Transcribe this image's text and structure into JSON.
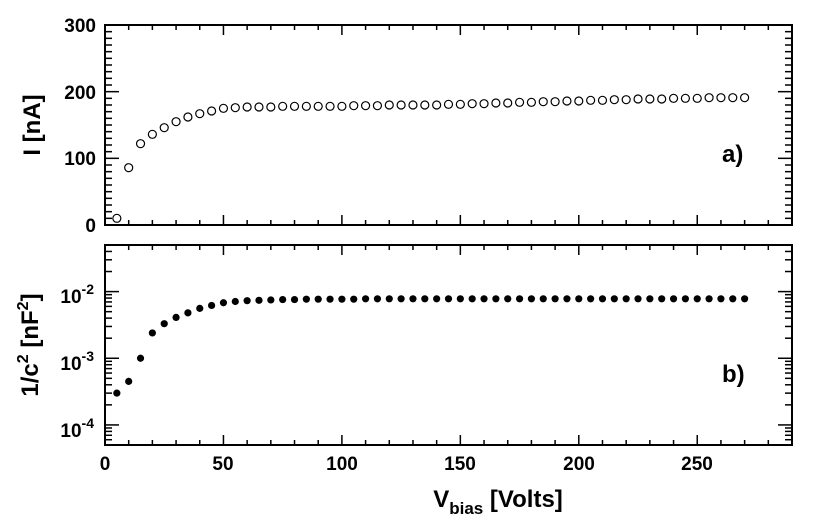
{
  "chart_data": [
    {
      "panel": "a)",
      "type": "scatter",
      "marker": "open-circle",
      "xlabel": "V",
      "xlabel_sub": "bias",
      "xlabel_rest": " [Volts]",
      "ylabel": "I [nA]",
      "xlim": [
        0,
        290
      ],
      "ylim": [
        0,
        300
      ],
      "x_ticks": [
        "0",
        "50",
        "100",
        "150",
        "200",
        "250"
      ],
      "y_ticks": [
        "0",
        "100",
        "200",
        "300"
      ],
      "x": [
        5,
        10,
        15,
        20,
        25,
        30,
        35,
        40,
        45,
        50,
        55,
        60,
        65,
        70,
        75,
        80,
        85,
        90,
        95,
        100,
        105,
        110,
        115,
        120,
        125,
        130,
        135,
        140,
        145,
        150,
        155,
        160,
        165,
        170,
        175,
        180,
        185,
        190,
        195,
        200,
        205,
        210,
        215,
        220,
        225,
        230,
        235,
        240,
        245,
        250,
        255,
        260,
        265,
        270
      ],
      "y": [
        10,
        86,
        122,
        136,
        146,
        155,
        162,
        167,
        171,
        175,
        176,
        177,
        177,
        177,
        178,
        178,
        178,
        178,
        178,
        178,
        179,
        179,
        179,
        180,
        180,
        180,
        180,
        180,
        181,
        181,
        182,
        182,
        183,
        183,
        184,
        184,
        185,
        185,
        186,
        186,
        187,
        187,
        188,
        188,
        189,
        189,
        189,
        190,
        190,
        190,
        191,
        191,
        191,
        191
      ]
    },
    {
      "panel": "b)",
      "type": "scatter",
      "marker": "filled-circle",
      "xlabel": "V",
      "xlabel_sub": "bias",
      "xlabel_rest": " [Volts]",
      "ylabel": "1/c",
      "ylabel_sup": "2",
      "ylabel_rest": " [nF",
      "ylabel_sup2": "2",
      "ylabel_end": "]",
      "yscale": "log",
      "xlim": [
        0,
        290
      ],
      "ylim": [
        5e-05,
        0.05
      ],
      "x_ticks": [
        "0",
        "50",
        "100",
        "150",
        "200",
        "250"
      ],
      "y_ticks": [
        {
          "base": "10",
          "exp": "-4",
          "value": 0.0001
        },
        {
          "base": "10",
          "exp": "-3",
          "value": 0.001
        },
        {
          "base": "10",
          "exp": "-2",
          "value": 0.01
        }
      ],
      "x": [
        5,
        10,
        15,
        20,
        25,
        30,
        35,
        40,
        45,
        50,
        55,
        60,
        65,
        70,
        75,
        80,
        85,
        90,
        95,
        100,
        105,
        110,
        115,
        120,
        125,
        130,
        135,
        140,
        145,
        150,
        155,
        160,
        165,
        170,
        175,
        180,
        185,
        190,
        195,
        200,
        205,
        210,
        215,
        220,
        225,
        230,
        235,
        240,
        245,
        250,
        255,
        260,
        265,
        270
      ],
      "y": [
        0.0003,
        0.00045,
        0.001,
        0.0024,
        0.0033,
        0.0041,
        0.0048,
        0.0056,
        0.0062,
        0.0068,
        0.0071,
        0.0073,
        0.0074,
        0.0075,
        0.0076,
        0.0076,
        0.0077,
        0.0077,
        0.0077,
        0.0077,
        0.0077,
        0.0078,
        0.0078,
        0.0078,
        0.0078,
        0.0078,
        0.0078,
        0.0078,
        0.0078,
        0.0078,
        0.0078,
        0.0078,
        0.0078,
        0.0078,
        0.0078,
        0.0078,
        0.0078,
        0.0078,
        0.0078,
        0.0078,
        0.0078,
        0.0078,
        0.0078,
        0.0078,
        0.0078,
        0.0078,
        0.0078,
        0.0078,
        0.0078,
        0.0078,
        0.0078,
        0.0078,
        0.0078,
        0.0078
      ]
    }
  ]
}
